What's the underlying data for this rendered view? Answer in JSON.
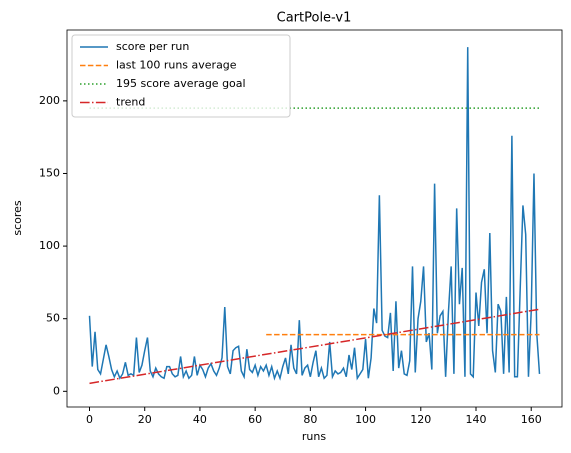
{
  "chart_data": {
    "type": "line",
    "title": "CartPole-v1",
    "xlabel": "runs",
    "ylabel": "scores",
    "xlim": [
      -8.15,
      171.15
    ],
    "ylim": [
      -10.8,
      248.8
    ],
    "xticks": [
      0,
      20,
      40,
      60,
      80,
      100,
      120,
      140,
      160
    ],
    "yticks": [
      0,
      50,
      100,
      150,
      200
    ],
    "legend": "upper left",
    "series": [
      {
        "name": "score per run",
        "color": "#1f77b4",
        "style": "solid",
        "x": [
          0,
          1,
          2,
          3,
          4,
          5,
          6,
          7,
          8,
          9,
          10,
          11,
          12,
          13,
          14,
          15,
          16,
          17,
          18,
          19,
          20,
          21,
          22,
          23,
          24,
          25,
          26,
          27,
          28,
          29,
          30,
          31,
          32,
          33,
          34,
          35,
          36,
          37,
          38,
          39,
          40,
          41,
          42,
          43,
          44,
          45,
          46,
          47,
          48,
          49,
          50,
          51,
          52,
          53,
          54,
          55,
          56,
          57,
          58,
          59,
          60,
          61,
          62,
          63,
          64,
          65,
          66,
          67,
          68,
          69,
          70,
          71,
          72,
          73,
          74,
          75,
          76,
          77,
          78,
          79,
          80,
          81,
          82,
          83,
          84,
          85,
          86,
          87,
          88,
          89,
          90,
          91,
          92,
          93,
          94,
          95,
          96,
          97,
          98,
          99,
          100,
          101,
          102,
          103,
          104,
          105,
          106,
          107,
          108,
          109,
          110,
          111,
          112,
          113,
          114,
          115,
          116,
          117,
          118,
          119,
          120,
          121,
          122,
          123,
          124,
          125,
          126,
          127,
          128,
          129,
          130,
          131,
          132,
          133,
          134,
          135,
          136,
          137,
          138,
          139,
          140,
          141,
          142,
          143,
          144,
          145,
          146,
          147,
          148,
          149,
          150,
          151,
          152,
          153,
          154,
          155,
          156,
          157,
          158,
          159,
          160,
          161,
          162,
          163
        ],
        "values": [
          52,
          17,
          41,
          15,
          12,
          22,
          32,
          24,
          15,
          10,
          14,
          9,
          12,
          20,
          11,
          12,
          11,
          37,
          13,
          18,
          28,
          37,
          14,
          10,
          16,
          12,
          10,
          9,
          17,
          17,
          12,
          10,
          11,
          24,
          10,
          14,
          9,
          11,
          24,
          11,
          18,
          15,
          10,
          16,
          19,
          14,
          11,
          16,
          23,
          58,
          17,
          12,
          28,
          30,
          31,
          14,
          10,
          29,
          15,
          13,
          18,
          11,
          17,
          14,
          18,
          11,
          17,
          9,
          14,
          9,
          17,
          23,
          12,
          32,
          16,
          12,
          49,
          11,
          16,
          18,
          10,
          20,
          28,
          10,
          16,
          9,
          11,
          34,
          10,
          14,
          12,
          13,
          16,
          10,
          25,
          15,
          30,
          9,
          12,
          15,
          36,
          9,
          23,
          57,
          47,
          135,
          42,
          38,
          37,
          54,
          14,
          62,
          16,
          28,
          12,
          11,
          21,
          86,
          13,
          50,
          62,
          86,
          34,
          40,
          15,
          143,
          40,
          52,
          55,
          10,
          54,
          86,
          12,
          126,
          60,
          85,
          10,
          237,
          12,
          10,
          68,
          45,
          75,
          84,
          40,
          109,
          28,
          13,
          60,
          55,
          12,
          65,
          13,
          176,
          10,
          10,
          70,
          128,
          108,
          10,
          55,
          150,
          40,
          12
        ]
      },
      {
        "name": "last 100 runs average",
        "color": "#ff7f0e",
        "style": "dashed",
        "x": [
          64,
          163
        ],
        "values": [
          39,
          39
        ]
      },
      {
        "name": "195 score average goal",
        "color": "#2ca02c",
        "style": "dotted",
        "x": [
          0,
          163
        ],
        "values": [
          195,
          195
        ]
      },
      {
        "name": "trend",
        "color": "#d62728",
        "style": "dashdot",
        "x": [
          0,
          163
        ],
        "values": [
          5.5,
          56.5
        ]
      }
    ]
  }
}
